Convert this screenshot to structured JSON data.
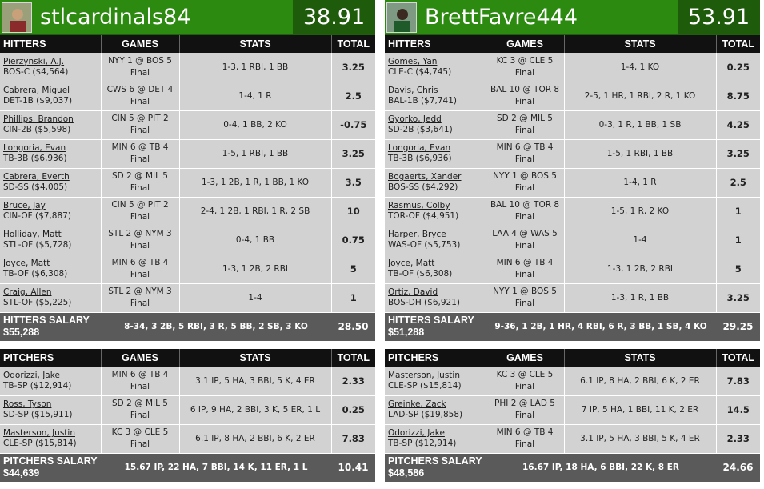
{
  "columns": {
    "hitters": "HITTERS",
    "pitchers": "PITCHERS",
    "games": "GAMES",
    "stats": "STATS",
    "total": "TOTAL"
  },
  "teams": [
    {
      "name": "stlcardinals84",
      "score": "38.91",
      "hitters": [
        {
          "name": "Pierzynski, A.J.",
          "info": "BOS-C ($4,564)",
          "game": "NYY 1 @ BOS 5",
          "status": "Final",
          "stats": "1-3, 1 RBI, 1 BB",
          "total": "3.25"
        },
        {
          "name": "Cabrera, Miguel",
          "info": "DET-1B ($9,037)",
          "game": "CWS 6 @ DET 4",
          "status": "Final",
          "stats": "1-4, 1 R",
          "total": "2.5"
        },
        {
          "name": "Phillips, Brandon",
          "info": "CIN-2B ($5,598)",
          "game": "CIN 5 @ PIT 2",
          "status": "Final",
          "stats": "0-4, 1 BB, 2 KO",
          "total": "-0.75"
        },
        {
          "name": "Longoria, Evan",
          "info": "TB-3B ($6,936)",
          "game": "MIN 6 @ TB 4",
          "status": "Final",
          "stats": "1-5, 1 RBI, 1 BB",
          "total": "3.25"
        },
        {
          "name": "Cabrera, Everth",
          "info": "SD-SS ($4,005)",
          "game": "SD 2 @ MIL 5",
          "status": "Final",
          "stats": "1-3, 1 2B, 1 R, 1 BB, 1 KO",
          "total": "3.5"
        },
        {
          "name": "Bruce, Jay",
          "info": "CIN-OF ($7,887)",
          "game": "CIN 5 @ PIT 2",
          "status": "Final",
          "stats": "2-4, 1 2B, 1 RBI, 1 R, 2 SB",
          "total": "10"
        },
        {
          "name": "Holliday, Matt",
          "info": "STL-OF ($5,728)",
          "game": "STL 2 @ NYM 3",
          "status": "Final",
          "stats": "0-4, 1 BB",
          "total": "0.75"
        },
        {
          "name": "Joyce, Matt",
          "info": "TB-OF ($6,308)",
          "game": "MIN 6 @ TB 4",
          "status": "Final",
          "stats": "1-3, 1 2B, 2 RBI",
          "total": "5"
        },
        {
          "name": "Craig, Allen",
          "info": "STL-OF ($5,225)",
          "game": "STL 2 @ NYM 3",
          "status": "Final",
          "stats": "1-4",
          "total": "1"
        }
      ],
      "hitters_salary": {
        "label": "HITTERS SALARY",
        "amount": "$55,288",
        "stats": "8-34, 3 2B, 5 RBI, 3 R, 5 BB, 2 SB, 3 KO",
        "total": "28.50"
      },
      "pitchers": [
        {
          "name": "Odorizzi, Jake",
          "info": "TB-SP ($12,914)",
          "game": "MIN 6 @ TB 4",
          "status": "Final",
          "stats": "3.1 IP, 5 HA, 3 BBI, 5 K, 4 ER",
          "total": "2.33"
        },
        {
          "name": "Ross, Tyson",
          "info": "SD-SP ($15,911)",
          "game": "SD 2 @ MIL 5",
          "status": "Final",
          "stats": "6 IP, 9 HA, 2 BBI, 3 K, 5 ER, 1 L",
          "total": "0.25"
        },
        {
          "name": "Masterson, Justin",
          "info": "CLE-SP ($15,814)",
          "game": "KC 3 @ CLE 5",
          "status": "Final",
          "stats": "6.1 IP, 8 HA, 2 BBI, 6 K, 2 ER",
          "total": "7.83"
        }
      ],
      "pitchers_salary": {
        "label": "PITCHERS SALARY",
        "amount": "$44,639",
        "stats": "15.67 IP, 22 HA, 7 BBI, 14 K, 11 ER, 1 L",
        "total": "10.41"
      }
    },
    {
      "name": "BrettFavre444",
      "score": "53.91",
      "hitters": [
        {
          "name": "Gomes, Yan",
          "info": "CLE-C ($4,745)",
          "game": "KC 3 @ CLE 5",
          "status": "Final",
          "stats": "1-4, 1 KO",
          "total": "0.25"
        },
        {
          "name": "Davis, Chris",
          "info": "BAL-1B ($7,741)",
          "game": "BAL 10 @ TOR 8",
          "status": "Final",
          "stats": "2-5, 1 HR, 1 RBI, 2 R, 1 KO",
          "total": "8.75"
        },
        {
          "name": "Gyorko, Jedd",
          "info": "SD-2B ($3,641)",
          "game": "SD 2 @ MIL 5",
          "status": "Final",
          "stats": "0-3, 1 R, 1 BB, 1 SB",
          "total": "4.25"
        },
        {
          "name": "Longoria, Evan",
          "info": "TB-3B ($6,936)",
          "game": "MIN 6 @ TB 4",
          "status": "Final",
          "stats": "1-5, 1 RBI, 1 BB",
          "total": "3.25"
        },
        {
          "name": "Bogaerts, Xander",
          "info": "BOS-SS ($4,292)",
          "game": "NYY 1 @ BOS 5",
          "status": "Final",
          "stats": "1-4, 1 R",
          "total": "2.5"
        },
        {
          "name": "Rasmus, Colby",
          "info": "TOR-OF ($4,951)",
          "game": "BAL 10 @ TOR 8",
          "status": "Final",
          "stats": "1-5, 1 R, 2 KO",
          "total": "1"
        },
        {
          "name": "Harper, Bryce",
          "info": "WAS-OF ($5,753)",
          "game": "LAA 4 @ WAS 5",
          "status": "Final",
          "stats": "1-4",
          "total": "1"
        },
        {
          "name": "Joyce, Matt",
          "info": "TB-OF ($6,308)",
          "game": "MIN 6 @ TB 4",
          "status": "Final",
          "stats": "1-3, 1 2B, 2 RBI",
          "total": "5"
        },
        {
          "name": "Ortiz, David",
          "info": "BOS-DH ($6,921)",
          "game": "NYY 1 @ BOS 5",
          "status": "Final",
          "stats": "1-3, 1 R, 1 BB",
          "total": "3.25"
        }
      ],
      "hitters_salary": {
        "label": "HITTERS SALARY",
        "amount": "$51,288",
        "stats": "9-36, 1 2B, 1 HR, 4 RBI, 6 R, 3 BB, 1 SB, 4 KO",
        "total": "29.25"
      },
      "pitchers": [
        {
          "name": "Masterson, Justin",
          "info": "CLE-SP ($15,814)",
          "game": "KC 3 @ CLE 5",
          "status": "Final",
          "stats": "6.1 IP, 8 HA, 2 BBI, 6 K, 2 ER",
          "total": "7.83"
        },
        {
          "name": "Greinke, Zack",
          "info": "LAD-SP ($19,858)",
          "game": "PHI 2 @ LAD 5",
          "status": "Final",
          "stats": "7 IP, 5 HA, 1 BBI, 11 K, 2 ER",
          "total": "14.5"
        },
        {
          "name": "Odorizzi, Jake",
          "info": "TB-SP ($12,914)",
          "game": "MIN 6 @ TB 4",
          "status": "Final",
          "stats": "3.1 IP, 5 HA, 3 BBI, 5 K, 4 ER",
          "total": "2.33"
        }
      ],
      "pitchers_salary": {
        "label": "PITCHERS SALARY",
        "amount": "$48,586",
        "stats": "16.67 IP, 18 HA, 6 BBI, 22 K, 8 ER",
        "total": "24.66"
      }
    }
  ]
}
